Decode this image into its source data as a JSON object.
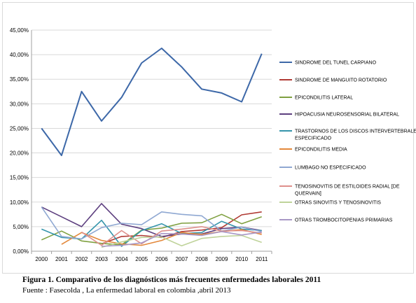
{
  "chart_data": {
    "type": "line",
    "title": "",
    "xlabel": "",
    "ylabel": "",
    "x": [
      "2000",
      "2001",
      "2002",
      "2003",
      "2004",
      "2005",
      "2006",
      "2007",
      "2008",
      "2009",
      "2010",
      "2011"
    ],
    "ylim": [
      0,
      45
    ],
    "yticks": [
      0,
      5,
      10,
      15,
      20,
      25,
      30,
      35,
      40,
      45
    ],
    "ytick_labels": [
      "0,00%",
      "5,00%",
      "10,00%",
      "15,00%",
      "20,00%",
      "25,00%",
      "30,00%",
      "35,00%",
      "40,00%",
      "45,00%"
    ],
    "grid": "horizontal",
    "legend_position": "right",
    "series": [
      {
        "name": "SINDROME DEL TUNEL CARPIANO",
        "color": "#3d68a8",
        "values": [
          25.0,
          19.5,
          32.5,
          26.5,
          31.3,
          38.3,
          41.3,
          37.5,
          33.0,
          32.2,
          30.4,
          40.2
        ]
      },
      {
        "name": "SINDROME DE MANGUITO ROTATORIO",
        "color": "#b03a34",
        "values": [
          null,
          null,
          null,
          1.5,
          3.0,
          3.2,
          2.8,
          4.0,
          4.3,
          4.8,
          7.4,
          8.0
        ]
      },
      {
        "name": "EPICONDILITIS LATERAL",
        "color": "#7fa040",
        "values": [
          2.3,
          4.1,
          2.1,
          1.6,
          1.3,
          4.3,
          4.7,
          5.7,
          5.8,
          7.5,
          5.6,
          7.0
        ]
      },
      {
        "name": "HIPOACUSIA NEUROSENSORIAL  BILATERAL",
        "color": "#5d3f7f",
        "values": [
          9.0,
          7.0,
          5.0,
          9.7,
          5.5,
          4.6,
          3.0,
          3.5,
          3.5,
          4.6,
          4.9,
          4.2
        ]
      },
      {
        "name": "TRASTORNOS DE LOS DISCOS INTERVERTEBRALES NO ESPECIFICADO",
        "color": "#3595ab",
        "values": [
          4.5,
          2.8,
          2.5,
          6.3,
          1.0,
          4.2,
          5.6,
          3.6,
          3.8,
          6.1,
          4.5,
          4.2
        ]
      },
      {
        "name": "EPICONDILITIS MEDIA",
        "color": "#e3883b",
        "values": [
          null,
          1.4,
          3.8,
          2.2,
          1.5,
          1.2,
          2.2,
          3.8,
          3.4,
          4.0,
          4.4,
          3.4
        ]
      },
      {
        "name": "LUMBAGO NO ESPECIFICADO",
        "color": "#8fa8d2",
        "values": [
          9.0,
          3.0,
          2.5,
          4.8,
          5.7,
          5.4,
          8.0,
          7.5,
          7.2,
          4.1,
          4.9,
          4.0
        ]
      },
      {
        "name": "TENOSINOVITIS DE ESTILOIDES RADIAL [DE QUERVAIN]",
        "color": "#de8f8b",
        "values": [
          null,
          null,
          3.9,
          1.2,
          4.2,
          1.5,
          4.1,
          4.5,
          5.0,
          4.1,
          4.2,
          3.7
        ]
      },
      {
        "name": "OTRAS SINOVITIS Y TENOSINOVITIS",
        "color": "#bfd39a",
        "values": [
          null,
          null,
          null,
          0.8,
          1.9,
          2.8,
          2.9,
          1.1,
          2.6,
          3.0,
          3.2,
          1.8
        ]
      },
      {
        "name": "OTRAS TROMBOCITOPENIAS PRIMARIAS",
        "color": "#a898c6",
        "values": [
          null,
          null,
          null,
          1.0,
          1.2,
          1.7,
          3.6,
          3.5,
          3.2,
          4.0,
          3.3,
          3.9
        ]
      }
    ]
  },
  "figure": {
    "caption": "Figura 1. Comparativo de los diagnósticos más frecuentes enfermedades laborales 2011",
    "source": "Fuente : Fasecolda , La enfermedad laboral en colombia ,abril 2013"
  }
}
